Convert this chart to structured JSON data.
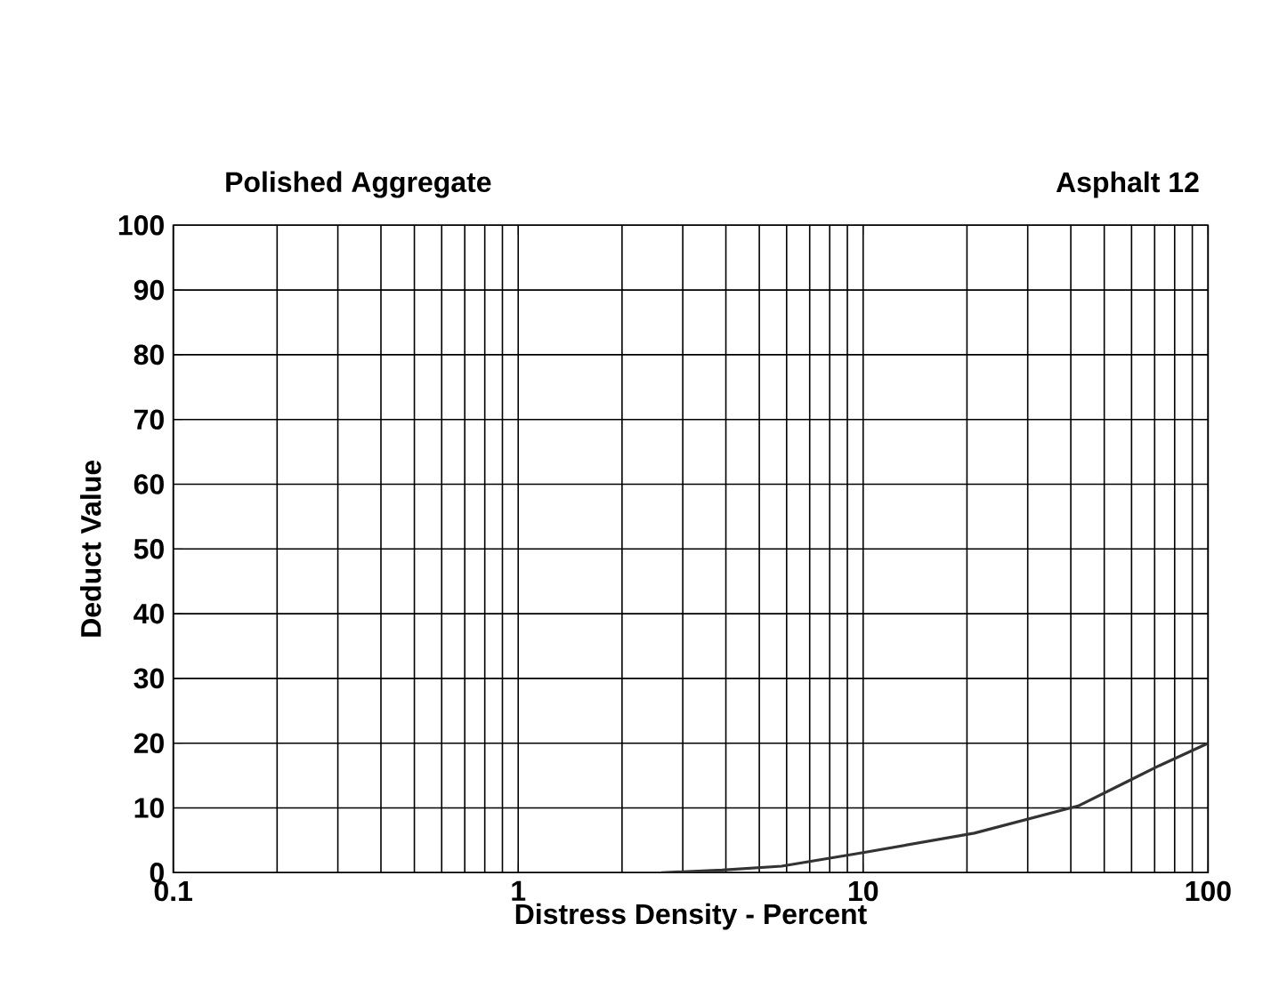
{
  "chart_data": {
    "type": "line",
    "title": "Polished Aggregate",
    "subtitle": "Asphalt 12",
    "xlabel": "Distress Density - Percent",
    "ylabel": "Deduct Value",
    "x": [
      2.6,
      3.9,
      5.8,
      10,
      21,
      42,
      72,
      100
    ],
    "series": [
      {
        "color": "#333333",
        "values": [
          0,
          0.4,
          1,
          3.1,
          6.1,
          10.3,
          16.5,
          20
        ]
      }
    ],
    "log": "x",
    "xlim": [
      0.1,
      100
    ],
    "ylim": [
      0,
      100
    ],
    "xticks": [
      0.1,
      1,
      10,
      100
    ],
    "yticks": [
      0,
      10,
      20,
      30,
      40,
      50,
      60,
      70,
      80,
      90,
      100
    ],
    "grid": true,
    "marker": "none",
    "line_style": "solid"
  }
}
